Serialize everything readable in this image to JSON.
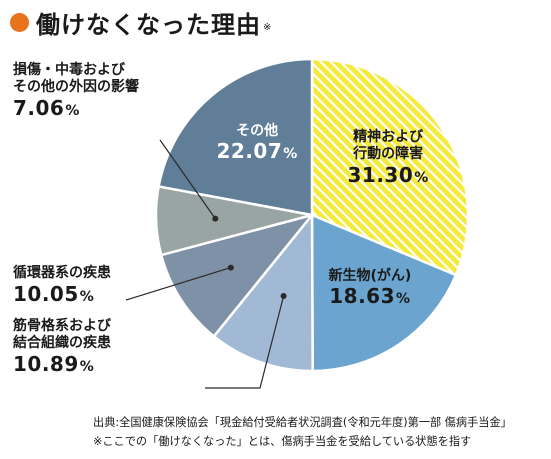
{
  "title": {
    "text": "働けなくなった理由",
    "mark": "※"
  },
  "chart_data": {
    "type": "pie",
    "title": "働けなくなった理由",
    "unit": "%",
    "slices": [
      {
        "name_lines": [
          "精神および",
          "行動の障害"
        ],
        "value": 31.3,
        "display": "31.30",
        "color": "#f5e93a",
        "pattern": "yellow-stripes"
      },
      {
        "name_lines": [
          "新生物(がん)"
        ],
        "value": 18.63,
        "display": "18.63",
        "color": "#6aa4cf"
      },
      {
        "name_lines": [
          "筋骨格系および",
          "結合組織の疾患"
        ],
        "value": 10.89,
        "display": "10.89",
        "color": "#a2b9d6"
      },
      {
        "name_lines": [
          "循環器系の疾患"
        ],
        "value": 10.05,
        "display": "10.05",
        "color": "#7f91a7"
      },
      {
        "name_lines": [
          "損傷・中毒および",
          "その他の外因の影響"
        ],
        "value": 7.06,
        "display": "7.06",
        "color": "#98a5a3"
      },
      {
        "name_lines": [
          "その他"
        ],
        "value": 22.07,
        "display": "22.07",
        "color": "#617e98"
      }
    ]
  },
  "source": {
    "line1": "出典:全国健康保険協会「現金給付受給者状況調査(令和元年度)第一部 傷病手当金」",
    "line2": "※ここでの「働けなくなった」とは、傷病手当金を受給している状態を指す"
  }
}
